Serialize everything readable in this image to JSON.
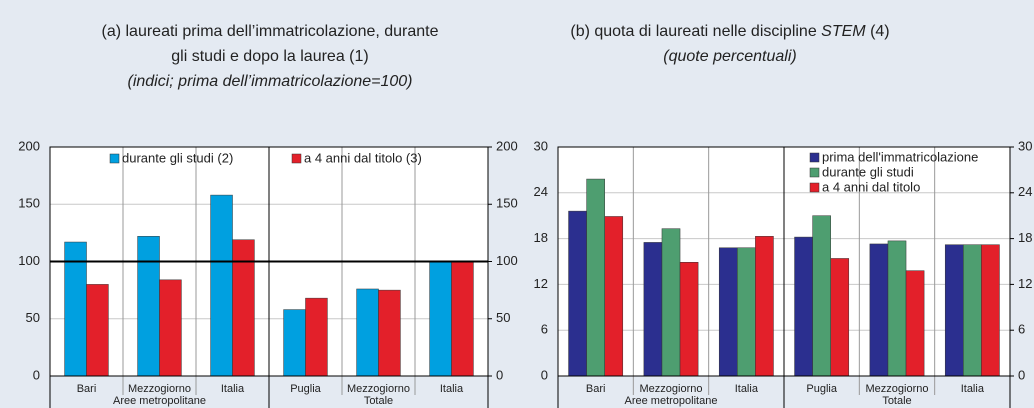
{
  "chart_data": [
    {
      "type": "bar",
      "title": [
        "(a) laureati prima dell’immatricolazione, durante",
        "gli studi e dopo la laurea (1)"
      ],
      "subtitle": "(indici; prima dell’immatricolazione=100)",
      "groups": [
        {
          "label": "Aree metropolitane",
          "categories": [
            "Bari",
            "Mezzogiorno",
            "Italia"
          ]
        },
        {
          "label": "Totale",
          "categories": [
            "Puglia",
            "Mezzogiorno",
            "Italia"
          ]
        }
      ],
      "series": [
        {
          "name": "durante gli studi (2)",
          "color": "#00a0e0",
          "values": [
            117,
            122,
            158,
            58,
            76,
            100
          ]
        },
        {
          "name": "a 4 anni dal titolo (3)",
          "color": "#e3202a",
          "values": [
            80,
            84,
            119,
            68,
            75,
            100
          ]
        }
      ],
      "reference_line": 100,
      "ylim": [
        0,
        200
      ],
      "yticks": [
        0,
        50,
        100,
        150,
        200
      ],
      "y2lim": [
        0,
        200
      ],
      "y2ticks": [
        0,
        50,
        100,
        150,
        200
      ],
      "grid": true,
      "legend": "top"
    },
    {
      "type": "bar",
      "title": [
        "(b) quota di laureati nelle discipline ",
        "STEM",
        " (4)"
      ],
      "subtitle": "(quote percentuali)",
      "groups": [
        {
          "label": "Aree metropolitane",
          "categories": [
            "Bari",
            "Mezzogiorno",
            "Italia"
          ]
        },
        {
          "label": "Totale",
          "categories": [
            "Puglia",
            "Mezzogiorno",
            "Italia"
          ]
        }
      ],
      "series": [
        {
          "name": "prima dell'immatricolazione",
          "color": "#2b2f8f",
          "values": [
            21.6,
            17.5,
            16.8,
            18.2,
            17.3,
            17.2
          ]
        },
        {
          "name": "durante gli studi",
          "color": "#4e9e70",
          "values": [
            25.8,
            19.3,
            16.8,
            21.0,
            17.7,
            17.2
          ]
        },
        {
          "name": "a 4 anni dal titolo",
          "color": "#e3202a",
          "values": [
            20.9,
            14.9,
            18.3,
            15.4,
            13.8,
            17.2
          ]
        }
      ],
      "ylim": [
        0,
        30
      ],
      "yticks": [
        0,
        6,
        12,
        18,
        24,
        30
      ],
      "y2lim": [
        0,
        30
      ],
      "y2ticks": [
        0,
        6,
        12,
        18,
        24,
        30
      ],
      "grid": true,
      "legend": "top-right"
    }
  ]
}
